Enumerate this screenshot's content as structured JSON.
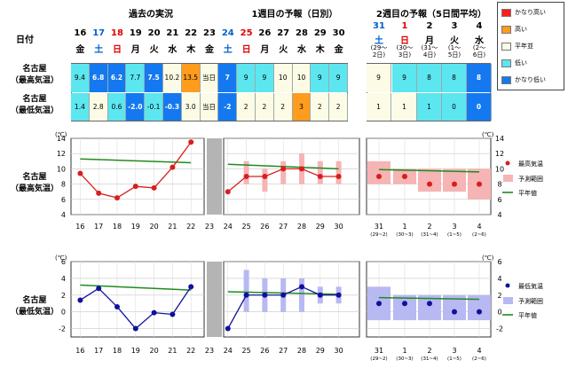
{
  "headings": {
    "past": "過去の実況",
    "week1": "1週目の予報（日別）",
    "week2": "2週目の予報（5日間平均）",
    "date": "日付",
    "row_max": [
      "名古屋",
      "（最高気温）"
    ],
    "row_min": [
      "名古屋",
      "（最低気温）"
    ],
    "chart_max": [
      "名古屋",
      "（最高気温）"
    ],
    "chart_min": [
      "名古屋",
      "（最低気温）"
    ]
  },
  "days": [
    {
      "d": "16",
      "w": "金"
    },
    {
      "d": "17",
      "w": "土",
      "c": "#0060d0"
    },
    {
      "d": "18",
      "w": "日",
      "c": "#e00000"
    },
    {
      "d": "19",
      "w": "月"
    },
    {
      "d": "20",
      "w": "火"
    },
    {
      "d": "21",
      "w": "水"
    },
    {
      "d": "22",
      "w": "木"
    },
    {
      "d": "23",
      "w": "金"
    },
    {
      "d": "24",
      "w": "土",
      "c": "#0060d0"
    },
    {
      "d": "25",
      "w": "日",
      "c": "#e00000"
    },
    {
      "d": "26",
      "w": "月"
    },
    {
      "d": "27",
      "w": "火"
    },
    {
      "d": "28",
      "w": "水"
    },
    {
      "d": "29",
      "w": "木"
    },
    {
      "d": "30",
      "w": "金"
    }
  ],
  "week2_days": [
    {
      "d": "31",
      "w": "土",
      "c": "#0060d0",
      "r": [
        "(29～",
        "2日)"
      ]
    },
    {
      "d": "1",
      "w": "日",
      "c": "#e00000",
      "r": [
        "(30～",
        "3日)"
      ]
    },
    {
      "d": "2",
      "w": "月",
      "r": [
        "(31～",
        "4日)"
      ]
    },
    {
      "d": "3",
      "w": "火",
      "r": [
        "(1～",
        "5日)"
      ]
    },
    {
      "d": "4",
      "w": "水",
      "r": [
        "(2～",
        "6日)"
      ]
    }
  ],
  "today_label": "当日",
  "table_max": [
    {
      "v": "9.4",
      "cat": "low"
    },
    {
      "v": "6.8",
      "cat": "vlow"
    },
    {
      "v": "6.2",
      "cat": "vlow"
    },
    {
      "v": "7.7",
      "cat": "low"
    },
    {
      "v": "7.5",
      "cat": "vlow"
    },
    {
      "v": "10.2",
      "cat": "norm"
    },
    {
      "v": "13.5",
      "cat": "high"
    },
    {
      "v": "当日",
      "cat": "norm"
    },
    {
      "v": "7",
      "cat": "vlow"
    },
    {
      "v": "9",
      "cat": "low"
    },
    {
      "v": "9",
      "cat": "low"
    },
    {
      "v": "10",
      "cat": "norm"
    },
    {
      "v": "10",
      "cat": "norm"
    },
    {
      "v": "9",
      "cat": "low"
    },
    {
      "v": "9",
      "cat": "low"
    }
  ],
  "table_max_w2": [
    {
      "v": "9",
      "cat": "norm"
    },
    {
      "v": "9",
      "cat": "low"
    },
    {
      "v": "8",
      "cat": "low"
    },
    {
      "v": "8",
      "cat": "low"
    },
    {
      "v": "8",
      "cat": "vlow"
    }
  ],
  "table_min": [
    {
      "v": "1.4",
      "cat": "low"
    },
    {
      "v": "2.8",
      "cat": "norm"
    },
    {
      "v": "0.6",
      "cat": "low"
    },
    {
      "v": "-2.0",
      "cat": "vlow"
    },
    {
      "v": "-0.1",
      "cat": "low"
    },
    {
      "v": "-0.3",
      "cat": "vlow"
    },
    {
      "v": "3.0",
      "cat": "norm"
    },
    {
      "v": "当日",
      "cat": "norm"
    },
    {
      "v": "-2",
      "cat": "vlow"
    },
    {
      "v": "2",
      "cat": "norm"
    },
    {
      "v": "2",
      "cat": "norm"
    },
    {
      "v": "2",
      "cat": "norm"
    },
    {
      "v": "3",
      "cat": "high"
    },
    {
      "v": "2",
      "cat": "norm"
    },
    {
      "v": "2",
      "cat": "norm"
    }
  ],
  "table_min_w2": [
    {
      "v": "1",
      "cat": "norm"
    },
    {
      "v": "1",
      "cat": "norm"
    },
    {
      "v": "1",
      "cat": "low"
    },
    {
      "v": "0",
      "cat": "low"
    },
    {
      "v": "0",
      "cat": "vlow"
    }
  ],
  "colors": {
    "vhigh": "#ff1c1c",
    "high": "#ff9c1c",
    "norm": "#fcfce6",
    "low": "#5ce6f0",
    "vlow": "#1479f0"
  },
  "legend": [
    {
      "label": "かなり高い",
      "cat": "vhigh"
    },
    {
      "label": "高い",
      "cat": "high"
    },
    {
      "label": "平年並",
      "cat": "norm"
    },
    {
      "label": "低い",
      "cat": "low"
    },
    {
      "label": "かなり低い",
      "cat": "vlow"
    }
  ],
  "chart_data": [
    {
      "type": "line",
      "title": "名古屋（最高気温）",
      "ylabel": "(℃)",
      "ylim": [
        4,
        14
      ],
      "yticks": [
        4,
        6,
        8,
        10,
        12,
        14
      ],
      "x": [
        "16",
        "17",
        "18",
        "19",
        "20",
        "21",
        "22",
        "23",
        "24",
        "25",
        "26",
        "27",
        "28",
        "29",
        "30"
      ],
      "observed": [
        9.4,
        6.8,
        6.2,
        7.7,
        7.5,
        10.2,
        13.5
      ],
      "forecast": [
        7,
        9,
        9,
        10,
        10,
        9,
        9
      ],
      "forecast_range": [
        null,
        [
          8,
          11
        ],
        [
          7,
          10
        ],
        [
          8,
          11
        ],
        [
          8,
          12
        ],
        [
          8,
          11
        ],
        [
          8,
          11
        ]
      ],
      "normal_past": [
        11.3,
        10.8
      ],
      "normal_w1": [
        10.6,
        10.0
      ],
      "week2_labels": [
        "31",
        "1",
        "2",
        "3",
        "4"
      ],
      "week2_sub": [
        "(29~2)",
        "(30~3)",
        "(31~4)",
        "(1~5)",
        "(2~6)"
      ],
      "week2_forecast": [
        9,
        9,
        8,
        8,
        8
      ],
      "week2_range": [
        [
          8,
          11
        ],
        [
          8,
          10
        ],
        [
          7,
          10
        ],
        [
          7,
          10
        ],
        [
          6,
          10
        ]
      ],
      "week2_normal": [
        9.9,
        9.6
      ],
      "legend": {
        "obs": "最高気温",
        "range": "予測範囲",
        "normal": "平年値"
      }
    },
    {
      "type": "line",
      "title": "名古屋（最低気温）",
      "ylabel": "(℃)",
      "ylim": [
        -3,
        6
      ],
      "yticks": [
        -2,
        0,
        2,
        4,
        6
      ],
      "x": [
        "16",
        "17",
        "18",
        "19",
        "20",
        "21",
        "22",
        "23",
        "24",
        "25",
        "26",
        "27",
        "28",
        "29",
        "30"
      ],
      "observed": [
        1.4,
        2.8,
        0.6,
        -2.0,
        -0.1,
        -0.3,
        3.0
      ],
      "forecast": [
        -2,
        2,
        2,
        2,
        3,
        2,
        2
      ],
      "forecast_range": [
        null,
        [
          0,
          5
        ],
        [
          0,
          4
        ],
        [
          0,
          4
        ],
        [
          0,
          4
        ],
        [
          1,
          3
        ],
        [
          1,
          3
        ]
      ],
      "normal_past": [
        3.2,
        2.6
      ],
      "normal_w1": [
        2.4,
        2.1
      ],
      "week2_labels": [
        "31",
        "1",
        "2",
        "3",
        "4"
      ],
      "week2_sub": [
        "(29~2)",
        "(30~3)",
        "(31~4)",
        "(1~5)",
        "(2~6)"
      ],
      "week2_forecast": [
        1,
        1,
        1,
        0,
        0
      ],
      "week2_range": [
        [
          -1,
          3
        ],
        [
          -1,
          2
        ],
        [
          -1,
          2
        ],
        [
          -1,
          2
        ],
        [
          -1,
          2
        ]
      ],
      "week2_normal": [
        1.7,
        1.5
      ],
      "legend": {
        "obs": "最低気温",
        "range": "予測範囲",
        "normal": "平年値"
      }
    }
  ]
}
